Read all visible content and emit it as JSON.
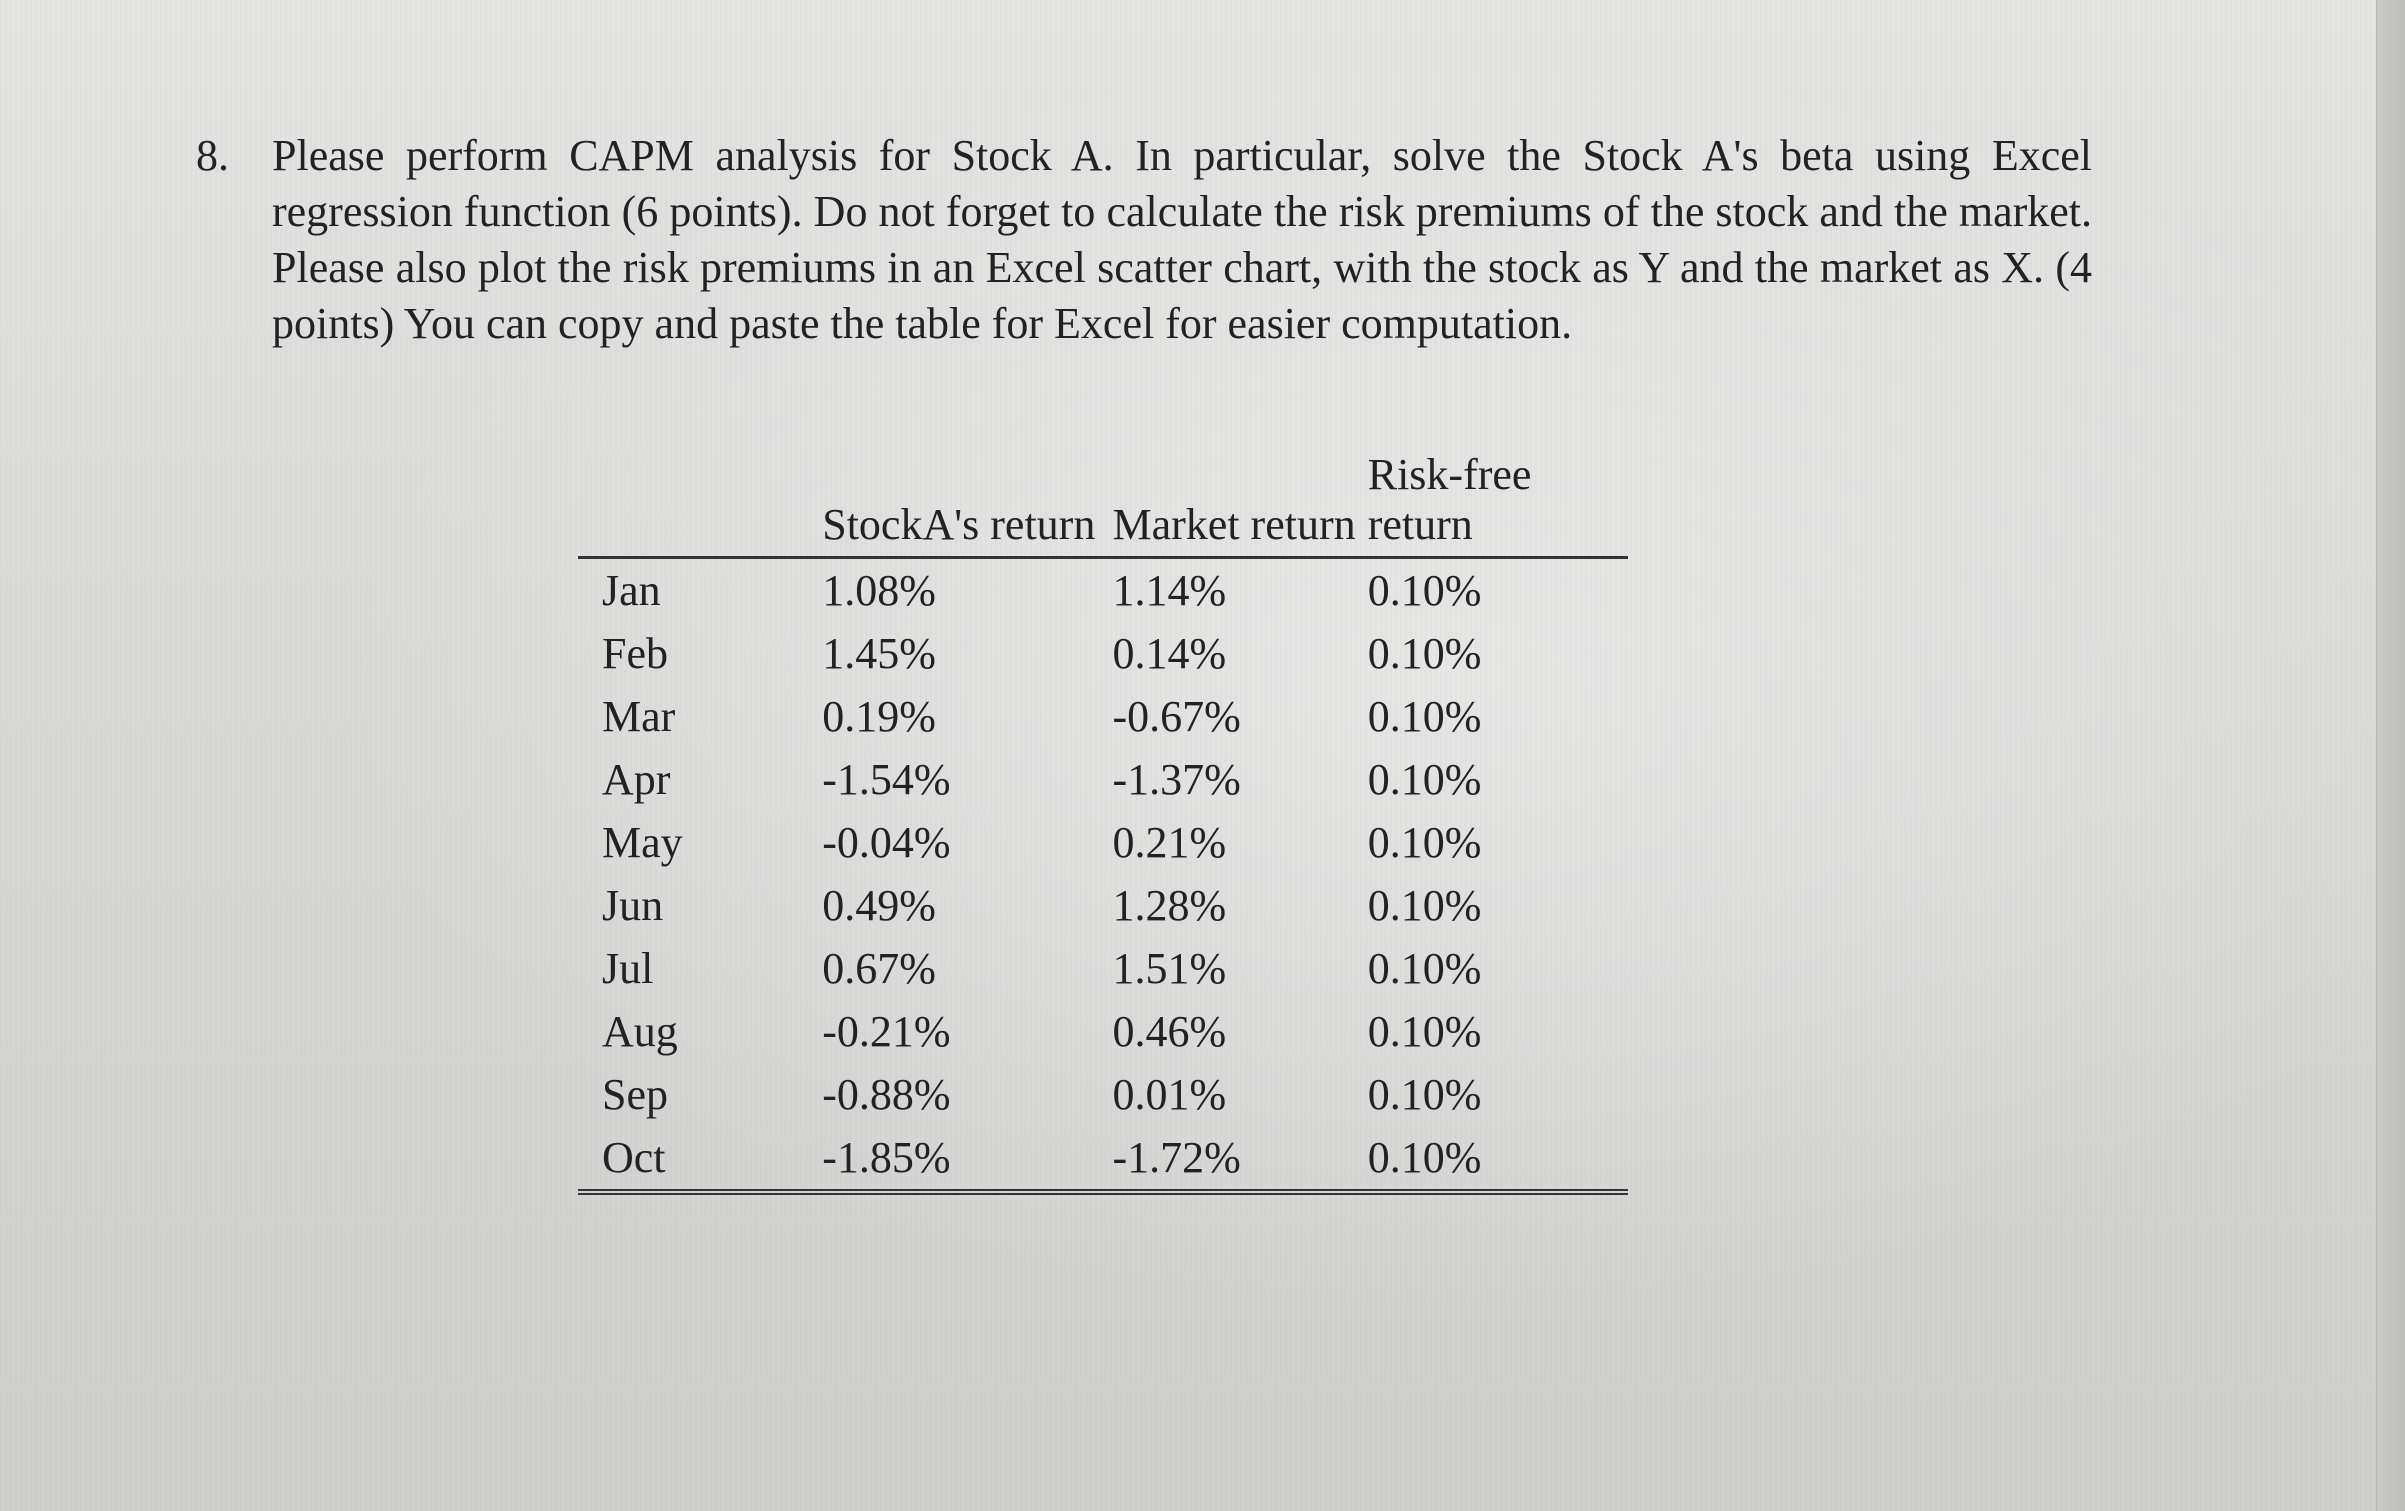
{
  "question": {
    "number": "8.",
    "text": "Please perform CAPM analysis for Stock A. In particular, solve the Stock A's beta using Excel regression function (6 points). Do not forget to calculate the risk premiums of the stock and the market. Please also plot the risk premiums in an Excel scatter chart, with the stock as Y and the market as X. (4 points) You can copy and paste the table for Excel for easier computation."
  },
  "table": {
    "headers": [
      "",
      "StockA's return",
      "Market return",
      "Risk-free return"
    ],
    "rows": [
      [
        "Jan",
        "1.08%",
        "1.14%",
        "0.10%"
      ],
      [
        "Feb",
        "1.45%",
        "0.14%",
        "0.10%"
      ],
      [
        "Mar",
        "0.19%",
        "-0.67%",
        "0.10%"
      ],
      [
        "Apr",
        "-1.54%",
        "-1.37%",
        "0.10%"
      ],
      [
        "May",
        "-0.04%",
        "0.21%",
        "0.10%"
      ],
      [
        "Jun",
        "0.49%",
        "1.28%",
        "0.10%"
      ],
      [
        "Jul",
        "0.67%",
        "1.51%",
        "0.10%"
      ],
      [
        "Aug",
        "-0.21%",
        "0.46%",
        "0.10%"
      ],
      [
        "Sep",
        "-0.88%",
        "0.01%",
        "0.10%"
      ],
      [
        "Oct",
        "-1.85%",
        "-1.72%",
        "0.10%"
      ]
    ]
  }
}
